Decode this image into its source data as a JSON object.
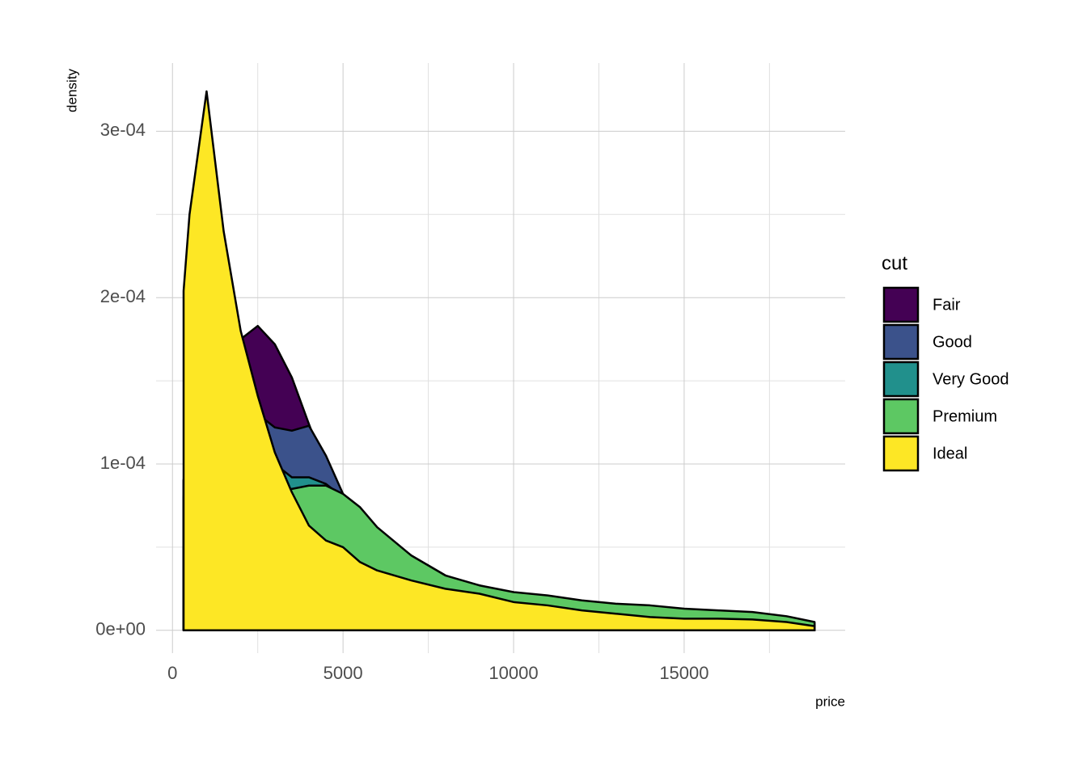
{
  "chart_data": {
    "type": "density",
    "x_label": "price",
    "y_label": "density",
    "legend_title": "cut",
    "legend_position": "right",
    "grid": true,
    "xlim": [
      -480,
      19720
    ],
    "ylim": [
      -1.37e-05,
      0.000341
    ],
    "xticks": [
      0,
      5000,
      10000,
      15000
    ],
    "x_minor_grid": [
      2500,
      7500,
      12500,
      17500
    ],
    "yticks": [
      {
        "value": 0,
        "label": "0e+00"
      },
      {
        "value": 0.0001,
        "label": "1e-04"
      },
      {
        "value": 0.0002,
        "label": "2e-04"
      },
      {
        "value": 0.0003,
        "label": "3e-04"
      }
    ],
    "y_minor_grid": [
      5e-05,
      0.00015,
      0.00025
    ],
    "x": [
      326,
      500,
      1000,
      1500,
      2000,
      2500,
      3000,
      3500,
      4000,
      4500,
      5000,
      5500,
      6000,
      7000,
      8000,
      9000,
      10000,
      11000,
      12000,
      13000,
      14000,
      15000,
      16000,
      17000,
      18000,
      18823
    ],
    "series": [
      {
        "name": "Fair",
        "color": "#440154",
        "values": [
          5e-05,
          6e-05,
          0.0001,
          0.000145,
          0.000175,
          0.000183,
          0.000172,
          0.000152,
          0.000124,
          9.7e-05,
          7.5e-05,
          7.2e-05,
          5.8e-05,
          4.2e-05,
          3.1e-05,
          2.7e-05,
          2.2e-05,
          1.9e-05,
          1.6e-05,
          1.5e-05,
          1.3e-05,
          1.2e-05,
          1e-05,
          9e-06,
          7e-06,
          4e-06
        ]
      },
      {
        "name": "Good",
        "color": "#3B528B",
        "values": [
          9e-05,
          0.00012,
          0.00017,
          0.00016,
          0.00014,
          0.00013,
          0.000122,
          0.00012,
          0.000123,
          0.000105,
          8.2e-05,
          7e-05,
          5.6e-05,
          4e-05,
          3e-05,
          2.4e-05,
          2e-05,
          1.8e-05,
          1.5e-05,
          1.3e-05,
          1.2e-05,
          1e-05,
          9e-06,
          8e-06,
          6e-06,
          3e-06
        ]
      },
      {
        "name": "Very Good",
        "color": "#21908C",
        "values": [
          9e-05,
          0.00013,
          0.0002,
          0.00018,
          0.00014,
          0.00012,
          0.0001,
          9.2e-05,
          9.2e-05,
          8.8e-05,
          8e-05,
          6.8e-05,
          6e-05,
          4.5e-05,
          3.3e-05,
          2.6e-05,
          2.1e-05,
          1.9e-05,
          1.6e-05,
          1.4e-05,
          1.2e-05,
          1e-05,
          9e-06,
          8e-06,
          6e-06,
          3e-06
        ]
      },
      {
        "name": "Premium",
        "color": "#5DC863",
        "values": [
          8e-05,
          0.00013,
          0.00022,
          0.00019,
          0.00013,
          0.0001,
          8.5e-05,
          8.5e-05,
          8.7e-05,
          8.7e-05,
          8.2e-05,
          7.4e-05,
          6.2e-05,
          4.5e-05,
          3.3e-05,
          2.7e-05,
          2.3e-05,
          2.1e-05,
          1.8e-05,
          1.6e-05,
          1.5e-05,
          1.3e-05,
          1.2e-05,
          1.1e-05,
          8.5e-06,
          5e-06
        ]
      },
      {
        "name": "Ideal",
        "color": "#FDE725",
        "values": [
          0.000204,
          0.00025,
          0.000324,
          0.00024,
          0.00018,
          0.000141,
          0.000107,
          8.3e-05,
          6.3e-05,
          5.4e-05,
          5e-05,
          4.1e-05,
          3.6e-05,
          3e-05,
          2.5e-05,
          2.2e-05,
          1.7e-05,
          1.5e-05,
          1.2e-05,
          1e-05,
          8e-06,
          7e-06,
          7e-06,
          6.5e-06,
          5e-06,
          2.5e-06
        ]
      }
    ]
  }
}
